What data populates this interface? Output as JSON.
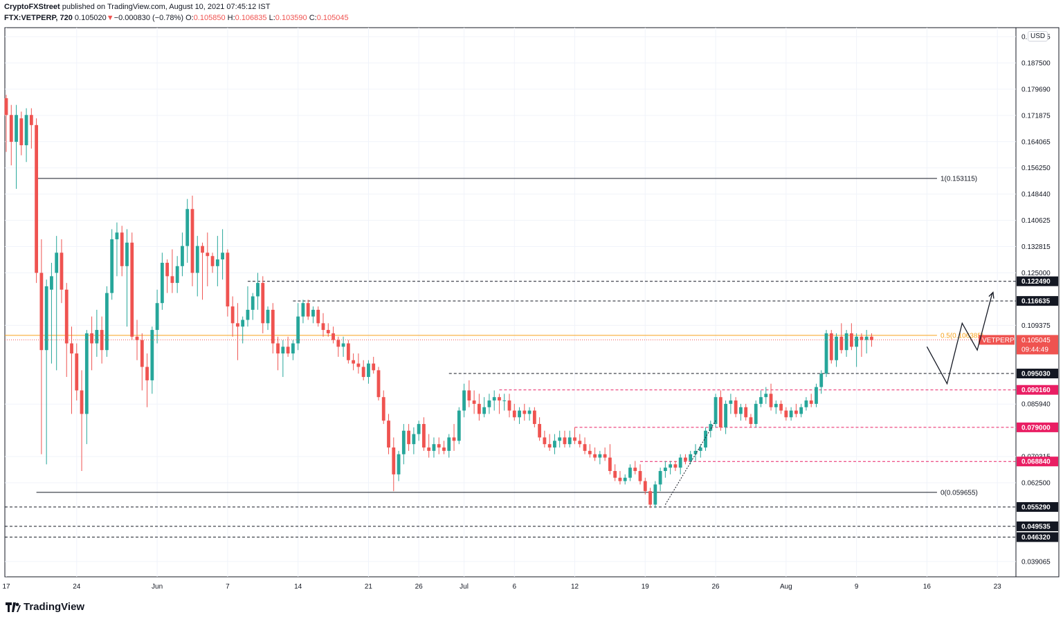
{
  "header": {
    "publisher": "CryptoFXStreet",
    "published_text": "published on TradingView.com, August 10, 2021 07:45:12 IST",
    "symbol": "FTX:VETPERP, 720",
    "last": "0.105020",
    "arrow": "▼",
    "change": "−0.000830 (−0.78%)",
    "o_label": "O:",
    "o_value": "0.105850",
    "h_label": "H:",
    "h_value": "0.106835",
    "l_label": "L:",
    "l_value": "0.103590",
    "c_label": "C:",
    "c_value": "0.105045"
  },
  "brand": "TradingView",
  "currency": "USD",
  "colors": {
    "up": "#26a69a",
    "down": "#ef5350",
    "fib": "#f7a21b",
    "level_pink": "#e91e63"
  },
  "chart_data": {
    "type": "candlestick",
    "symbol": "FTX:VETPERP",
    "interval": "720",
    "ylim": [
      0.0345,
      0.198
    ],
    "y_ticks": [
      "0.195315",
      "0.187500",
      "0.179690",
      "0.171875",
      "0.164065",
      "0.156250",
      "0.148440",
      "0.140625",
      "0.132815",
      "0.125000",
      "0.109375",
      "0.085940",
      "0.070315",
      "0.062500",
      "0.039065"
    ],
    "x_ticks": [
      "17",
      "24",
      "Jun",
      "7",
      "14",
      "21",
      "26",
      "Jul",
      "6",
      "12",
      "19",
      "26",
      "Aug",
      "9",
      "16",
      "23"
    ],
    "x_ticks_index": [
      0,
      14,
      30,
      44,
      58,
      72,
      82,
      91,
      101,
      113,
      127,
      141,
      155,
      169,
      183,
      197
    ],
    "grid": true,
    "candles": [
      [
        0.177,
        0.178,
        0.161,
        0.172
      ],
      [
        0.172,
        0.175,
        0.157,
        0.164
      ],
      [
        0.164,
        0.175,
        0.15,
        0.172
      ],
      [
        0.171,
        0.173,
        0.16,
        0.163
      ],
      [
        0.163,
        0.174,
        0.158,
        0.172
      ],
      [
        0.172,
        0.174,
        0.162,
        0.169
      ],
      [
        0.169,
        0.171,
        0.122,
        0.125
      ],
      [
        0.125,
        0.135,
        0.071,
        0.102
      ],
      [
        0.102,
        0.123,
        0.068,
        0.121
      ],
      [
        0.12,
        0.128,
        0.098,
        0.124
      ],
      [
        0.125,
        0.136,
        0.096,
        0.131
      ],
      [
        0.131,
        0.135,
        0.116,
        0.12
      ],
      [
        0.12,
        0.122,
        0.094,
        0.104
      ],
      [
        0.104,
        0.109,
        0.083,
        0.101
      ],
      [
        0.101,
        0.104,
        0.087,
        0.09
      ],
      [
        0.09,
        0.096,
        0.066,
        0.083
      ],
      [
        0.083,
        0.108,
        0.074,
        0.107
      ],
      [
        0.107,
        0.112,
        0.096,
        0.104
      ],
      [
        0.104,
        0.114,
        0.1,
        0.108
      ],
      [
        0.108,
        0.112,
        0.098,
        0.102
      ],
      [
        0.102,
        0.121,
        0.1,
        0.119
      ],
      [
        0.119,
        0.138,
        0.117,
        0.135
      ],
      [
        0.135,
        0.14,
        0.124,
        0.137
      ],
      [
        0.137,
        0.139,
        0.124,
        0.127
      ],
      [
        0.127,
        0.138,
        0.109,
        0.134
      ],
      [
        0.134,
        0.137,
        0.105,
        0.106
      ],
      [
        0.106,
        0.111,
        0.099,
        0.105
      ],
      [
        0.105,
        0.107,
        0.09,
        0.097
      ],
      [
        0.097,
        0.101,
        0.085,
        0.093
      ],
      [
        0.093,
        0.109,
        0.089,
        0.108
      ],
      [
        0.108,
        0.12,
        0.104,
        0.116
      ],
      [
        0.116,
        0.131,
        0.114,
        0.128
      ],
      [
        0.128,
        0.129,
        0.119,
        0.124
      ],
      [
        0.124,
        0.132,
        0.119,
        0.122
      ],
      [
        0.122,
        0.13,
        0.119,
        0.127
      ],
      [
        0.127,
        0.137,
        0.124,
        0.133
      ],
      [
        0.133,
        0.147,
        0.128,
        0.144
      ],
      [
        0.144,
        0.148,
        0.121,
        0.125
      ],
      [
        0.125,
        0.136,
        0.118,
        0.133
      ],
      [
        0.133,
        0.134,
        0.117,
        0.131
      ],
      [
        0.131,
        0.137,
        0.121,
        0.13
      ],
      [
        0.13,
        0.131,
        0.125,
        0.127
      ],
      [
        0.127,
        0.136,
        0.121,
        0.129
      ],
      [
        0.129,
        0.138,
        0.123,
        0.131
      ],
      [
        0.131,
        0.132,
        0.112,
        0.115
      ],
      [
        0.115,
        0.118,
        0.106,
        0.11
      ],
      [
        0.11,
        0.116,
        0.099,
        0.109
      ],
      [
        0.109,
        0.112,
        0.104,
        0.111
      ],
      [
        0.111,
        0.121,
        0.109,
        0.114
      ],
      [
        0.114,
        0.119,
        0.111,
        0.118
      ],
      [
        0.118,
        0.125,
        0.114,
        0.122
      ],
      [
        0.122,
        0.124,
        0.107,
        0.11
      ],
      [
        0.11,
        0.115,
        0.108,
        0.114
      ],
      [
        0.114,
        0.116,
        0.101,
        0.104
      ],
      [
        0.104,
        0.106,
        0.096,
        0.101
      ],
      [
        0.101,
        0.105,
        0.094,
        0.103
      ],
      [
        0.103,
        0.106,
        0.1,
        0.101
      ],
      [
        0.101,
        0.105,
        0.099,
        0.104
      ],
      [
        0.104,
        0.116,
        0.102,
        0.112
      ],
      [
        0.112,
        0.117,
        0.11,
        0.116
      ],
      [
        0.116,
        0.117,
        0.111,
        0.112
      ],
      [
        0.112,
        0.115,
        0.11,
        0.114
      ],
      [
        0.114,
        0.115,
        0.109,
        0.11
      ],
      [
        0.11,
        0.113,
        0.106,
        0.108
      ],
      [
        0.108,
        0.11,
        0.106,
        0.107
      ],
      [
        0.107,
        0.109,
        0.104,
        0.105
      ],
      [
        0.105,
        0.106,
        0.1,
        0.103
      ],
      [
        0.103,
        0.106,
        0.1,
        0.104
      ],
      [
        0.104,
        0.105,
        0.098,
        0.099
      ],
      [
        0.099,
        0.101,
        0.096,
        0.098
      ],
      [
        0.098,
        0.101,
        0.095,
        0.097
      ],
      [
        0.097,
        0.099,
        0.093,
        0.094
      ],
      [
        0.094,
        0.099,
        0.092,
        0.098
      ],
      [
        0.098,
        0.1,
        0.095,
        0.096
      ],
      [
        0.096,
        0.097,
        0.087,
        0.088
      ],
      [
        0.088,
        0.09,
        0.08,
        0.081
      ],
      [
        0.081,
        0.083,
        0.071,
        0.073
      ],
      [
        0.073,
        0.076,
        0.06,
        0.065
      ],
      [
        0.065,
        0.072,
        0.063,
        0.071
      ],
      [
        0.071,
        0.08,
        0.068,
        0.078
      ],
      [
        0.078,
        0.08,
        0.072,
        0.074
      ],
      [
        0.074,
        0.079,
        0.071,
        0.077
      ],
      [
        0.077,
        0.081,
        0.075,
        0.08
      ],
      [
        0.08,
        0.082,
        0.072,
        0.073
      ],
      [
        0.073,
        0.077,
        0.07,
        0.072
      ],
      [
        0.072,
        0.076,
        0.07,
        0.074
      ],
      [
        0.074,
        0.076,
        0.071,
        0.073
      ],
      [
        0.073,
        0.075,
        0.071,
        0.072
      ],
      [
        0.072,
        0.077,
        0.07,
        0.076
      ],
      [
        0.076,
        0.08,
        0.072,
        0.075
      ],
      [
        0.075,
        0.085,
        0.074,
        0.084
      ],
      [
        0.084,
        0.092,
        0.082,
        0.09
      ],
      [
        0.09,
        0.093,
        0.085,
        0.087
      ],
      [
        0.087,
        0.09,
        0.083,
        0.086
      ],
      [
        0.086,
        0.089,
        0.081,
        0.083
      ],
      [
        0.083,
        0.088,
        0.082,
        0.085
      ],
      [
        0.085,
        0.089,
        0.083,
        0.087
      ],
      [
        0.087,
        0.09,
        0.084,
        0.088
      ],
      [
        0.088,
        0.089,
        0.083,
        0.087
      ],
      [
        0.087,
        0.089,
        0.084,
        0.087
      ],
      [
        0.087,
        0.089,
        0.082,
        0.084
      ],
      [
        0.084,
        0.086,
        0.081,
        0.082
      ],
      [
        0.082,
        0.085,
        0.08,
        0.084
      ],
      [
        0.084,
        0.086,
        0.081,
        0.083
      ],
      [
        0.083,
        0.085,
        0.081,
        0.084
      ],
      [
        0.084,
        0.085,
        0.079,
        0.08
      ],
      [
        0.08,
        0.082,
        0.075,
        0.076
      ],
      [
        0.076,
        0.078,
        0.073,
        0.074
      ],
      [
        0.074,
        0.077,
        0.072,
        0.073
      ],
      [
        0.073,
        0.077,
        0.071,
        0.075
      ],
      [
        0.075,
        0.078,
        0.073,
        0.076
      ],
      [
        0.076,
        0.078,
        0.073,
        0.074
      ],
      [
        0.074,
        0.078,
        0.073,
        0.076
      ],
      [
        0.076,
        0.079,
        0.074,
        0.075
      ],
      [
        0.075,
        0.077,
        0.073,
        0.074
      ],
      [
        0.074,
        0.076,
        0.071,
        0.072
      ],
      [
        0.072,
        0.074,
        0.07,
        0.071
      ],
      [
        0.071,
        0.073,
        0.069,
        0.07
      ],
      [
        0.07,
        0.072,
        0.068,
        0.071
      ],
      [
        0.071,
        0.073,
        0.069,
        0.07
      ],
      [
        0.07,
        0.074,
        0.065,
        0.066
      ],
      [
        0.066,
        0.068,
        0.063,
        0.064
      ],
      [
        0.064,
        0.066,
        0.062,
        0.063
      ],
      [
        0.063,
        0.065,
        0.062,
        0.064
      ],
      [
        0.064,
        0.068,
        0.063,
        0.067
      ],
      [
        0.067,
        0.069,
        0.065,
        0.066
      ],
      [
        0.066,
        0.068,
        0.062,
        0.063
      ],
      [
        0.063,
        0.064,
        0.059,
        0.06
      ],
      [
        0.06,
        0.061,
        0.055,
        0.056
      ],
      [
        0.056,
        0.063,
        0.055,
        0.062
      ],
      [
        0.062,
        0.067,
        0.06,
        0.066
      ],
      [
        0.066,
        0.069,
        0.064,
        0.067
      ],
      [
        0.067,
        0.069,
        0.065,
        0.068
      ],
      [
        0.068,
        0.069,
        0.066,
        0.067
      ],
      [
        0.067,
        0.071,
        0.065,
        0.07
      ],
      [
        0.07,
        0.071,
        0.068,
        0.069
      ],
      [
        0.069,
        0.072,
        0.068,
        0.071
      ],
      [
        0.071,
        0.074,
        0.069,
        0.072
      ],
      [
        0.072,
        0.074,
        0.07,
        0.073
      ],
      [
        0.073,
        0.079,
        0.072,
        0.078
      ],
      [
        0.078,
        0.081,
        0.076,
        0.08
      ],
      [
        0.08,
        0.089,
        0.079,
        0.088
      ],
      [
        0.088,
        0.09,
        0.078,
        0.079
      ],
      [
        0.079,
        0.087,
        0.077,
        0.086
      ],
      [
        0.086,
        0.089,
        0.083,
        0.087
      ],
      [
        0.087,
        0.088,
        0.082,
        0.083
      ],
      [
        0.083,
        0.086,
        0.081,
        0.085
      ],
      [
        0.085,
        0.086,
        0.081,
        0.082
      ],
      [
        0.082,
        0.083,
        0.079,
        0.08
      ],
      [
        0.08,
        0.087,
        0.079,
        0.086
      ],
      [
        0.086,
        0.09,
        0.085,
        0.088
      ],
      [
        0.088,
        0.091,
        0.086,
        0.089
      ],
      [
        0.089,
        0.092,
        0.084,
        0.085
      ],
      [
        0.085,
        0.087,
        0.083,
        0.086
      ],
      [
        0.086,
        0.087,
        0.083,
        0.084
      ],
      [
        0.084,
        0.085,
        0.081,
        0.082
      ],
      [
        0.082,
        0.085,
        0.081,
        0.084
      ],
      [
        0.084,
        0.086,
        0.082,
        0.083
      ],
      [
        0.083,
        0.086,
        0.082,
        0.085
      ],
      [
        0.085,
        0.088,
        0.084,
        0.087
      ],
      [
        0.087,
        0.089,
        0.085,
        0.086
      ],
      [
        0.086,
        0.092,
        0.085,
        0.091
      ],
      [
        0.091,
        0.096,
        0.089,
        0.095
      ],
      [
        0.095,
        0.108,
        0.094,
        0.107
      ],
      [
        0.107,
        0.108,
        0.098,
        0.099
      ],
      [
        0.099,
        0.107,
        0.097,
        0.106
      ],
      [
        0.106,
        0.11,
        0.101,
        0.102
      ],
      [
        0.102,
        0.108,
        0.1,
        0.107
      ],
      [
        0.107,
        0.11,
        0.102,
        0.103
      ],
      [
        0.103,
        0.107,
        0.097,
        0.106
      ],
      [
        0.106,
        0.107,
        0.1,
        0.105
      ],
      [
        0.105,
        0.108,
        0.101,
        0.106
      ],
      [
        0.106,
        0.107,
        0.103,
        0.105
      ]
    ],
    "horizontal_levels": [
      {
        "label": "0.122490",
        "value": 0.12249,
        "style": "dashed",
        "color": "#131722"
      },
      {
        "label": "0.116635",
        "value": 0.116635,
        "style": "dashed",
        "color": "#131722"
      },
      {
        "label": "0.095030",
        "value": 0.09503,
        "style": "dashed",
        "color": "#131722"
      },
      {
        "label": "0.090160",
        "value": 0.09016,
        "style": "dashed",
        "color": "#e91e63"
      },
      {
        "label": "0.079000",
        "value": 0.079,
        "style": "dashed",
        "color": "#e91e63"
      },
      {
        "label": "0.068840",
        "value": 0.06884,
        "style": "dashed",
        "color": "#e91e63"
      },
      {
        "label": "0.055290",
        "value": 0.05529,
        "style": "dashed",
        "color": "#131722"
      },
      {
        "label": "0.049535",
        "value": 0.049535,
        "style": "dashed",
        "color": "#131722"
      },
      {
        "label": "0.046320",
        "value": 0.04632,
        "style": "dashed",
        "color": "#131722"
      }
    ],
    "fib_levels": [
      {
        "label": "1(0.153115)",
        "value": 0.153115
      },
      {
        "label": "0.5(0.106385)",
        "value": 0.106385
      },
      {
        "label": "0(0.059655)",
        "value": 0.059655
      }
    ],
    "current_price": {
      "symbol": "VETPERP",
      "value": "0.105045",
      "countdown": "09:44:49"
    },
    "projection_path": [
      [
        183,
        0.103
      ],
      [
        187,
        0.092
      ],
      [
        190,
        0.11
      ],
      [
        193,
        0.102
      ],
      [
        196,
        0.119
      ]
    ]
  }
}
